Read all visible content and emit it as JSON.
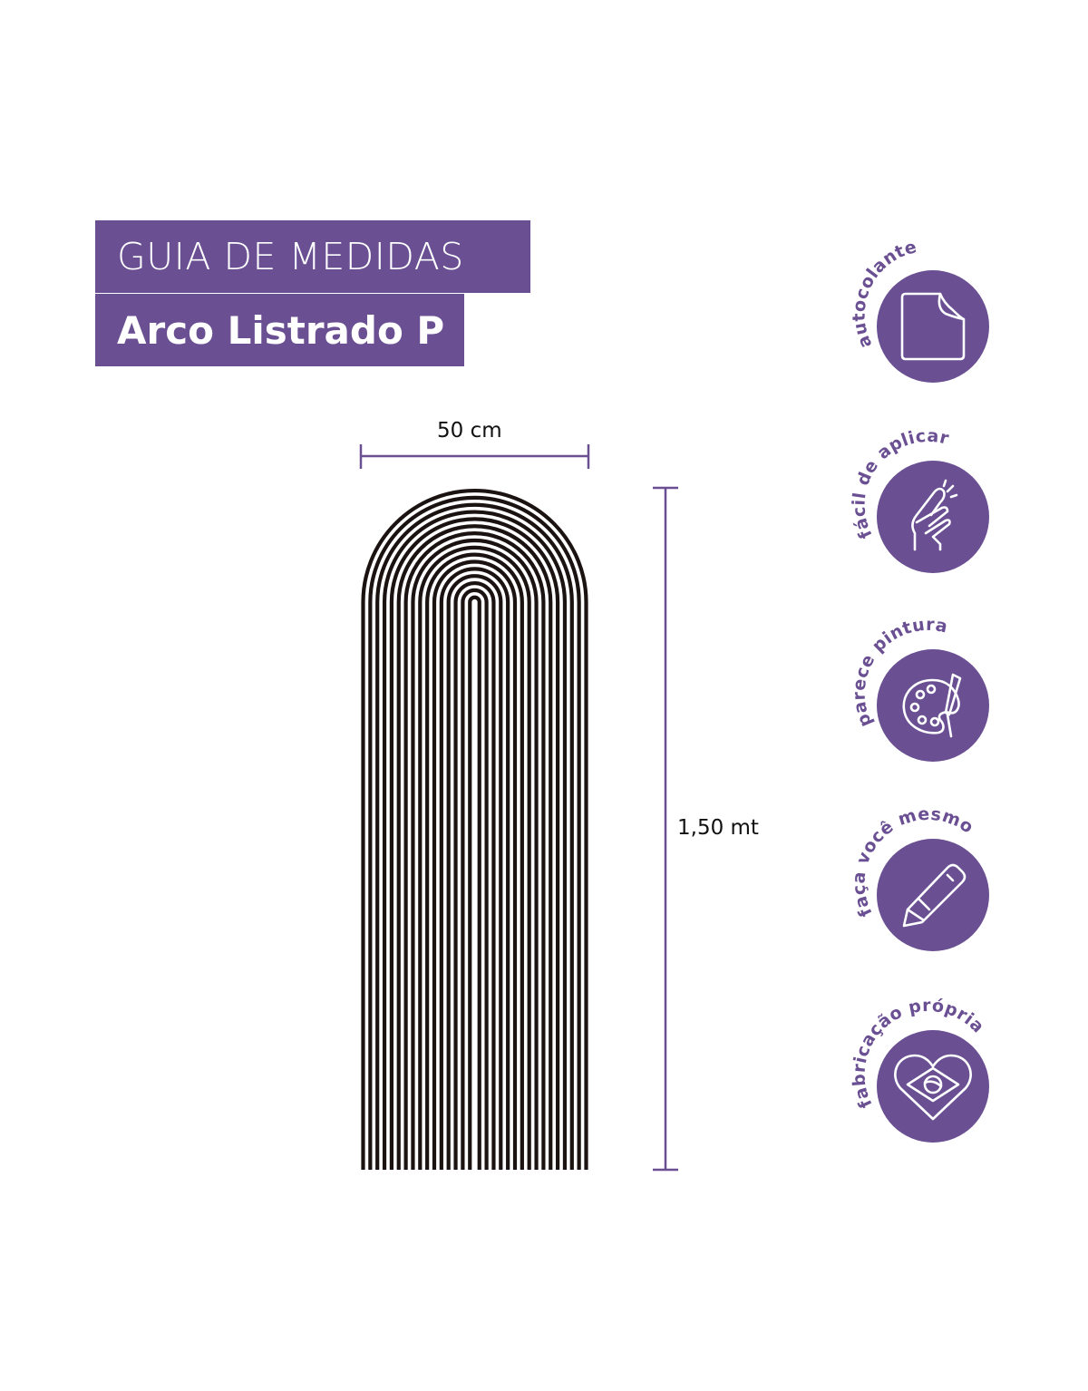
{
  "header": {
    "title": "GUIA DE MEDIDAS",
    "product": "Arco Listrado P"
  },
  "dimensions": {
    "width": "50 cm",
    "height": "1,50 mt"
  },
  "colors": {
    "accent": "#6a4f93",
    "stripe": "#1a1311"
  },
  "badges": [
    {
      "label": "autocolante",
      "icon": "peeling-sticker-icon"
    },
    {
      "label": "fácil de aplicar",
      "icon": "finger-press-icon"
    },
    {
      "label": "parece pintura",
      "icon": "paint-palette-icon"
    },
    {
      "label": "faça você mesmo",
      "icon": "utility-knife-icon"
    },
    {
      "label": "fabricação própria",
      "icon": "heart-brazil-flag-icon"
    }
  ]
}
